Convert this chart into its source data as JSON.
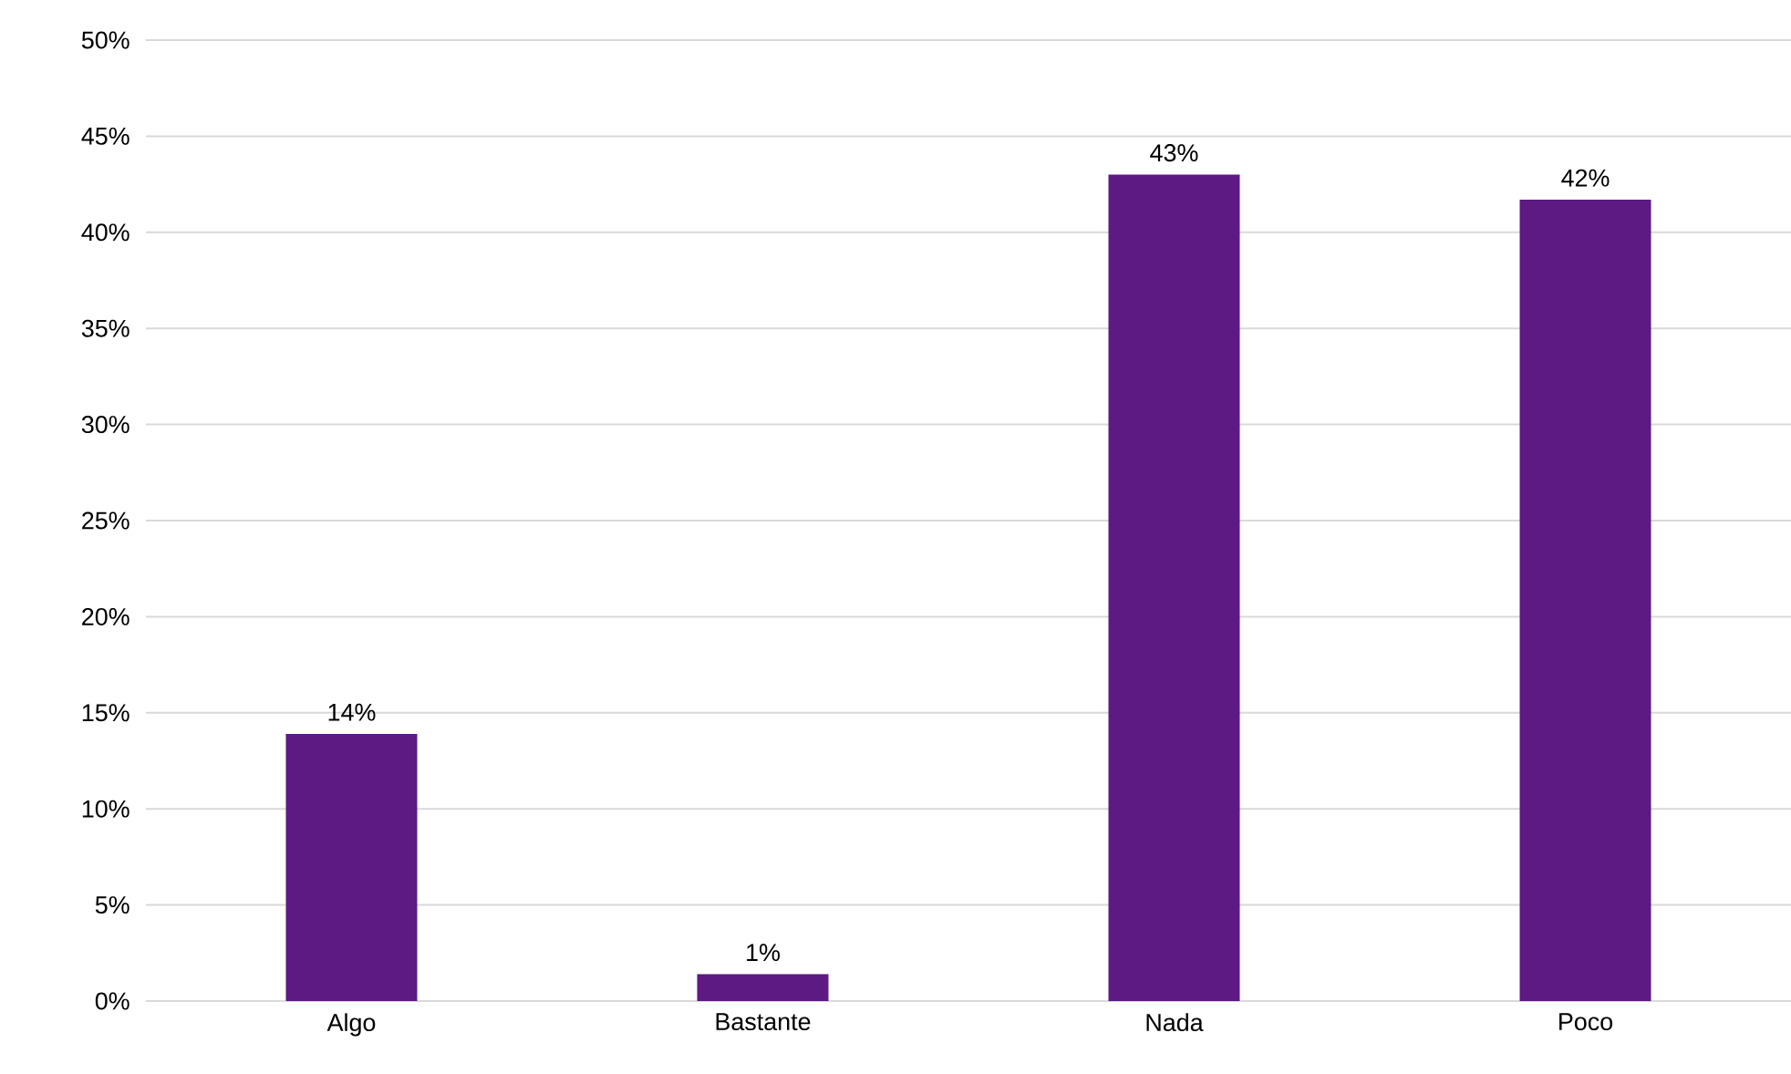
{
  "chart_data": {
    "type": "bar",
    "categories": [
      "Algo",
      "Bastante",
      "Nada",
      "Poco"
    ],
    "values": [
      13.9,
      1.4,
      43.0,
      41.7
    ],
    "value_labels": [
      "14%",
      "1%",
      "43%",
      "42%"
    ],
    "color": "#5c1a82",
    "ylim": [
      0,
      50
    ],
    "yticks": [
      {
        "value": 0,
        "label": "0%"
      },
      {
        "value": 5,
        "label": "5%"
      },
      {
        "value": 10,
        "label": "10%"
      },
      {
        "value": 15,
        "label": "15%"
      },
      {
        "value": 20,
        "label": "20%"
      },
      {
        "value": 25,
        "label": "25%"
      },
      {
        "value": 30,
        "label": "30%"
      },
      {
        "value": 35,
        "label": "35%"
      },
      {
        "value": 40,
        "label": "40%"
      },
      {
        "value": 45,
        "label": "45%"
      },
      {
        "value": 50,
        "label": "50%"
      }
    ],
    "grid": "y"
  }
}
